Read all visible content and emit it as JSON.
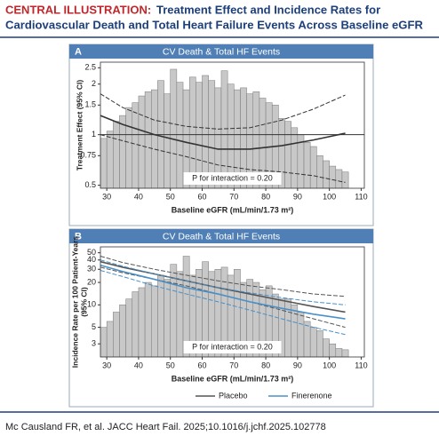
{
  "header": {
    "label": "CENTRAL ILLUSTRATION:",
    "title_line1": "Treatment Effect and Incidence Rates for",
    "title_line2": "Cardiovascular Death and Total Heart Failure Events Across Baseline eGFR"
  },
  "footer": "Mc Causland FR, et al. JACC Heart Fail. 2025;10.1016/j.jchf.2025.102778",
  "chart_data": [
    {
      "type": "line",
      "panel_label": "A",
      "title": "CV Death & Total HF Events",
      "ylabel": [
        "Treatment Effect (95% CI)"
      ],
      "xlabel": "Baseline eGFR (mL/min/1.73 m²)",
      "annotation": "P for interaction = 0.20",
      "xlim": [
        28,
        111
      ],
      "xticks": [
        30,
        40,
        50,
        60,
        70,
        80,
        90,
        100,
        110
      ],
      "ylim": [
        0.48,
        2.7
      ],
      "ylog": true,
      "yticks": [
        0.5,
        0.75,
        1,
        1.5,
        2,
        2.5
      ],
      "reference_line": 1,
      "histogram": {
        "color": "#c8c8c8",
        "bins": [
          26,
          28,
          30,
          32,
          34,
          36,
          38,
          40,
          42,
          44,
          46,
          48,
          50,
          52,
          54,
          56,
          58,
          60,
          62,
          64,
          66,
          68,
          70,
          72,
          74,
          76,
          78,
          80,
          82,
          84,
          86,
          88,
          90,
          92,
          94,
          96,
          98,
          100,
          102,
          104,
          106
        ],
        "values": [
          0.85,
          0.95,
          1.05,
          1.2,
          1.3,
          1.45,
          1.55,
          1.7,
          1.8,
          1.85,
          2.1,
          1.75,
          2.45,
          2.05,
          1.85,
          2.2,
          2.05,
          2.25,
          2.1,
          1.9,
          2.4,
          2.0,
          1.85,
          1.9,
          1.75,
          1.8,
          1.65,
          1.55,
          1.5,
          1.25,
          1.2,
          1.1,
          1.0,
          0.9,
          0.85,
          0.75,
          0.7,
          0.65,
          0.62,
          0.6
        ]
      },
      "x": [
        28,
        35,
        45,
        55,
        65,
        75,
        85,
        95,
        105
      ],
      "series": [
        {
          "color": "#333333",
          "dash": false,
          "values": [
            1.3,
            1.15,
            1.0,
            0.9,
            0.82,
            0.82,
            0.86,
            0.93,
            1.02
          ]
        },
        {
          "color": "#333333",
          "dash": true,
          "values": [
            1.75,
            1.45,
            1.22,
            1.12,
            1.08,
            1.1,
            1.22,
            1.42,
            1.72
          ]
        },
        {
          "color": "#333333",
          "dash": true,
          "values": [
            1.0,
            0.92,
            0.82,
            0.74,
            0.66,
            0.62,
            0.6,
            0.57,
            0.52
          ]
        }
      ]
    },
    {
      "type": "line",
      "panel_label": "B",
      "title": "CV Death & Total HF Events",
      "ylabel": [
        "Incidence Rate per 100 Patient-Years",
        "(95% CI)"
      ],
      "xlabel": "Baseline eGFR (mL/min/1.73 m²)",
      "annotation": "P for interaction = 0.20",
      "xlim": [
        28,
        111
      ],
      "xticks": [
        30,
        40,
        50,
        60,
        70,
        80,
        90,
        100,
        110
      ],
      "ylim": [
        2,
        60
      ],
      "ylog": true,
      "yticks": [
        3,
        5,
        10,
        20,
        30,
        40,
        50
      ],
      "histogram": {
        "color": "#c8c8c8",
        "bins": [
          26,
          28,
          30,
          32,
          34,
          36,
          38,
          40,
          42,
          44,
          46,
          48,
          50,
          52,
          54,
          56,
          58,
          60,
          62,
          64,
          66,
          68,
          70,
          72,
          74,
          76,
          78,
          80,
          82,
          84,
          86,
          88,
          90,
          92,
          94,
          96,
          98,
          100,
          102,
          104,
          106
        ],
        "values": [
          3.5,
          5,
          6,
          8,
          10,
          12,
          15,
          17,
          20,
          18,
          25,
          22,
          35,
          28,
          45,
          25,
          30,
          38,
          28,
          30,
          32,
          25,
          30,
          20,
          22,
          20,
          16,
          18,
          14,
          12,
          12,
          10,
          8,
          6,
          5,
          4.5,
          3.5,
          3,
          2.6,
          2.5
        ]
      },
      "x": [
        28,
        35,
        45,
        55,
        65,
        75,
        85,
        95,
        105
      ],
      "series": [
        {
          "name": "Placebo",
          "color": "#555555",
          "dash": false,
          "values": [
            38,
            32,
            26,
            21,
            17,
            14,
            11.5,
            9.5,
            8
          ]
        },
        {
          "color": "#555555",
          "dash": true,
          "values": [
            45,
            37,
            30,
            25,
            21,
            18,
            16,
            14,
            13
          ]
        },
        {
          "color": "#555555",
          "dash": true,
          "values": [
            32,
            27,
            22,
            18,
            14,
            11,
            8.5,
            6.5,
            5
          ]
        },
        {
          "name": "Finerenone",
          "color": "#4a90c8",
          "dash": false,
          "values": [
            34,
            28,
            22,
            17,
            14,
            11,
            9,
            7.5,
            6.5
          ]
        },
        {
          "color": "#4a90c8",
          "dash": true,
          "values": [
            40,
            33,
            26,
            21,
            17,
            14.5,
            12.5,
            11,
            10
          ]
        },
        {
          "color": "#4a90c8",
          "dash": true,
          "values": [
            29,
            24,
            18,
            14,
            11,
            8.5,
            6.5,
            5,
            4
          ]
        }
      ]
    }
  ]
}
